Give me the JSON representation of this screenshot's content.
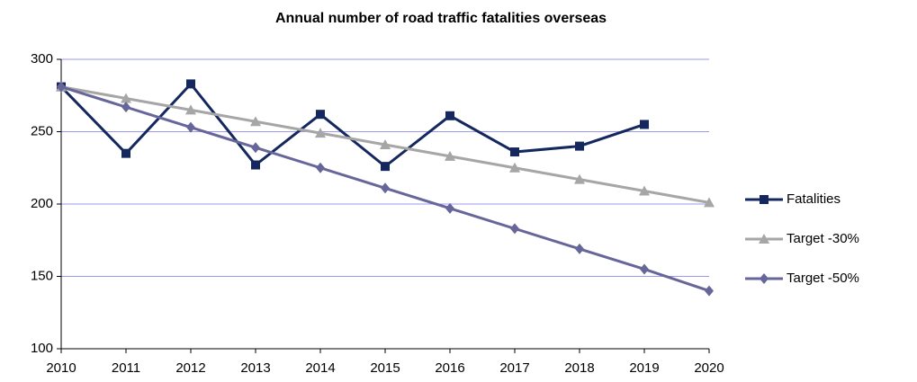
{
  "chart_data": {
    "type": "line",
    "title": "Annual number of road traffic fatalities overseas",
    "x": [
      2010,
      2011,
      2012,
      2013,
      2014,
      2015,
      2016,
      2017,
      2018,
      2019,
      2020
    ],
    "series": [
      {
        "name": "Fatalities",
        "color": "#14285f",
        "marker": "square",
        "values": [
          281,
          235,
          283,
          227,
          262,
          226,
          261,
          236,
          240,
          255,
          null
        ]
      },
      {
        "name": "Target -30%",
        "color": "#a6a6a6",
        "marker": "triangle",
        "values": [
          281,
          273,
          265,
          257,
          249,
          241,
          233,
          225,
          217,
          209,
          201
        ]
      },
      {
        "name": "Target -50%",
        "color": "#66669a",
        "marker": "diamond",
        "values": [
          281,
          267,
          253,
          239,
          225,
          211,
          197,
          183,
          169,
          155,
          140
        ]
      }
    ],
    "xlim": [
      2010,
      2020
    ],
    "xticks": [
      2010,
      2011,
      2012,
      2013,
      2014,
      2015,
      2016,
      2017,
      2018,
      2019,
      2020
    ],
    "ylim": [
      100,
      300
    ],
    "yticks": [
      100,
      150,
      200,
      250,
      300
    ],
    "grid": true,
    "legend": "right"
  }
}
